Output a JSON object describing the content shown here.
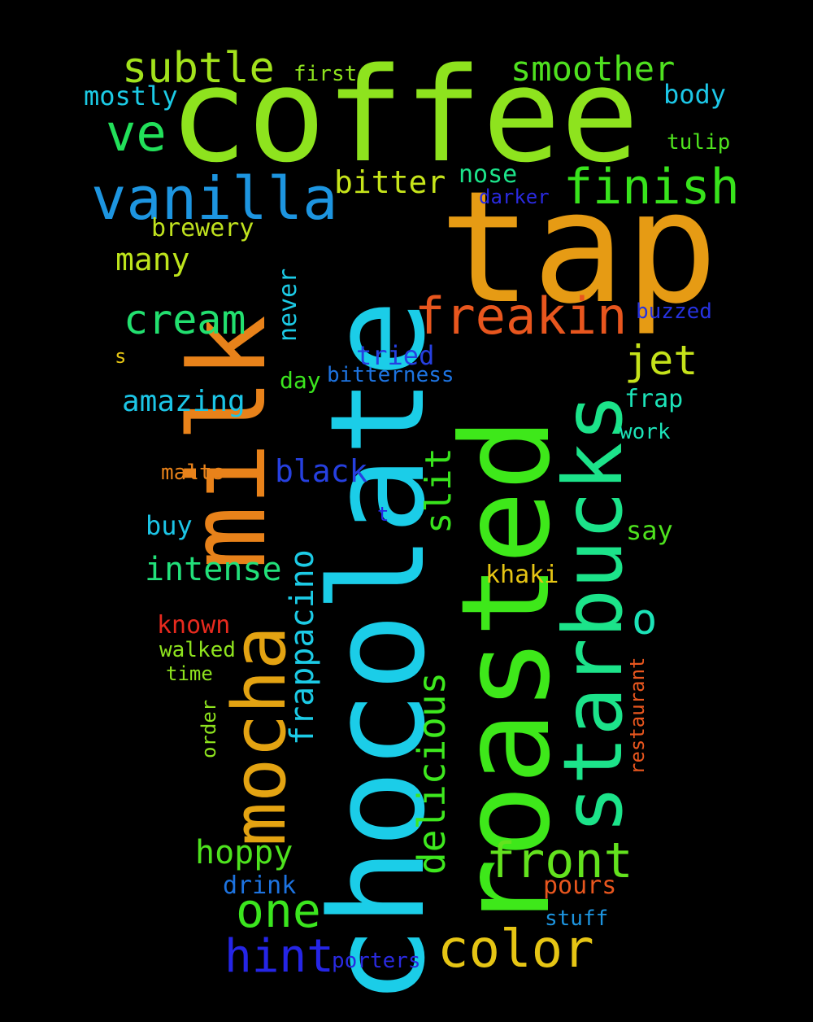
{
  "words": [
    {
      "text": "coffee",
      "color": "#8ee31e"
    },
    {
      "text": "tap",
      "color": "#e69b14"
    },
    {
      "text": "chocolate",
      "color": "#1bcde8"
    },
    {
      "text": "roasted",
      "color": "#3ee81a"
    },
    {
      "text": "milk",
      "color": "#e8821a"
    },
    {
      "text": "starbucks",
      "color": "#1ce38a"
    },
    {
      "text": "mocha",
      "color": "#e3a312"
    },
    {
      "text": "vanilla",
      "color": "#1d95e0"
    },
    {
      "text": "freakin",
      "color": "#e8561e"
    },
    {
      "text": "finish",
      "color": "#38e31c"
    },
    {
      "text": "subtle",
      "color": "#a2e21c"
    },
    {
      "text": "smoother",
      "color": "#4fe11f"
    },
    {
      "text": "cream",
      "color": "#22e06f"
    },
    {
      "text": "ve",
      "color": "#22e05a"
    },
    {
      "text": "color",
      "color": "#e6c514"
    },
    {
      "text": "front",
      "color": "#63e21e"
    },
    {
      "text": "hint",
      "color": "#2525e6"
    },
    {
      "text": "one",
      "color": "#3be51e"
    },
    {
      "text": "jet",
      "color": "#c5e21a"
    },
    {
      "text": "bitter",
      "color": "#c6e41a"
    },
    {
      "text": "many",
      "color": "#bde41c"
    },
    {
      "text": "amazing",
      "color": "#1cc5e6"
    },
    {
      "text": "intense",
      "color": "#22e07a"
    },
    {
      "text": "hoppy",
      "color": "#4ee21e"
    },
    {
      "text": "black",
      "color": "#2640e0"
    },
    {
      "text": "slit",
      "color": "#38e31c"
    },
    {
      "text": "delicious",
      "color": "#3ee81e"
    },
    {
      "text": "frappacino",
      "color": "#1ccbe6"
    },
    {
      "text": "o",
      "color": "#1ce3b8"
    },
    {
      "text": "mostly",
      "color": "#1ccbe6"
    },
    {
      "text": "first",
      "color": "#8ee31e"
    },
    {
      "text": "body",
      "color": "#1cc6e6"
    },
    {
      "text": "tulip",
      "color": "#4ee21e"
    },
    {
      "text": "nose",
      "color": "#1ce38a"
    },
    {
      "text": "darker",
      "color": "#2a2ae0"
    },
    {
      "text": "brewery",
      "color": "#c0e21e"
    },
    {
      "text": "buzzed",
      "color": "#2632e0"
    },
    {
      "text": "never",
      "color": "#1ccbe6"
    },
    {
      "text": "s",
      "color": "#e6c514"
    },
    {
      "text": "tried",
      "color": "#2640e0"
    },
    {
      "text": "bitterness",
      "color": "#1d73e0"
    },
    {
      "text": "day",
      "color": "#3be51e"
    },
    {
      "text": "frap",
      "color": "#1ce3b8"
    },
    {
      "text": "work",
      "color": "#1ce3b8"
    },
    {
      "text": "malts",
      "color": "#e8821a"
    },
    {
      "text": "buy",
      "color": "#1cc5e6"
    },
    {
      "text": "t",
      "color": "#2525e6"
    },
    {
      "text": "say",
      "color": "#4ee21e"
    },
    {
      "text": "khaki",
      "color": "#e6c514"
    },
    {
      "text": "known",
      "color": "#e82a1e"
    },
    {
      "text": "walked",
      "color": "#8ee31e"
    },
    {
      "text": "time",
      "color": "#8ee31e"
    },
    {
      "text": "order",
      "color": "#8ee31e"
    },
    {
      "text": "restaurant",
      "color": "#e8561e"
    },
    {
      "text": "drink",
      "color": "#1d73e0"
    },
    {
      "text": "pours",
      "color": "#e8561e"
    },
    {
      "text": "stuff",
      "color": "#1d95e0"
    },
    {
      "text": "porters",
      "color": "#2a2ae0"
    }
  ]
}
